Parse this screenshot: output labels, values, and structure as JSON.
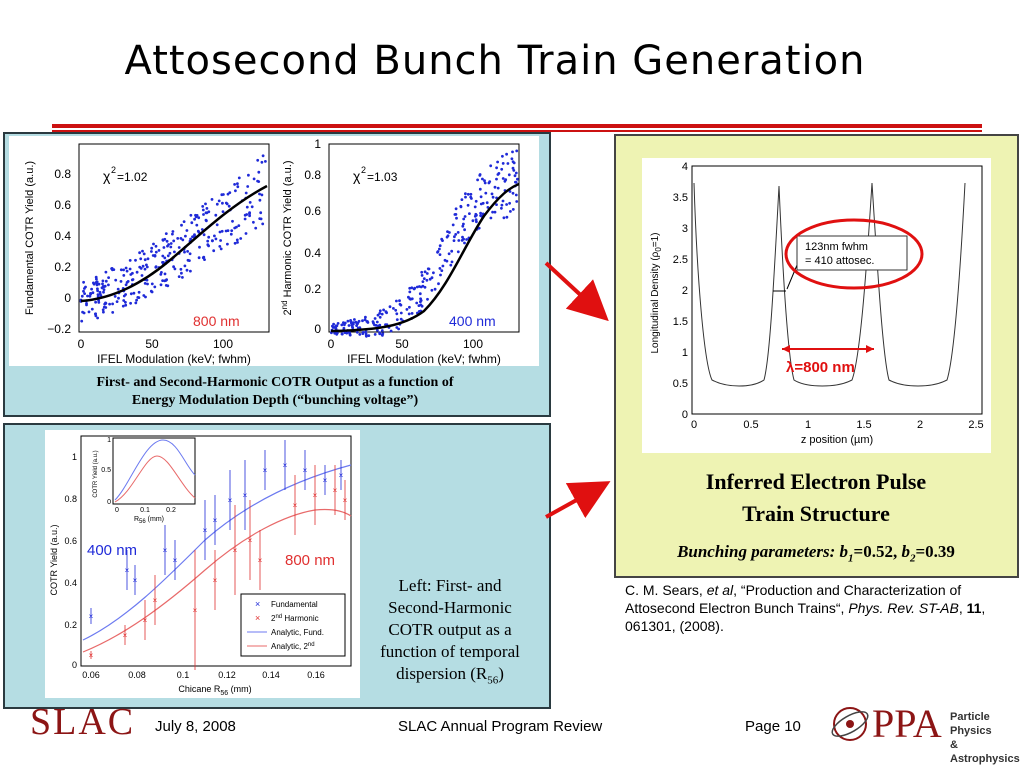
{
  "title": "Attosecond Bunch Train Generation",
  "panel1": {
    "caption_line1": "First- and Second-Harmonic COTR Output as a function of",
    "caption_line2": "Energy Modulation Depth (“bunching voltage”)",
    "plot_left": {
      "ylabel": "Fundamental COTR Yield (a.u.)",
      "xlabel": "IFEL Modulation (keV; fwhm)",
      "chi2": "=1.02",
      "wavelength_label": "800 nm",
      "yticks": [
        "0.8",
        "0.6",
        "0.4",
        "0.2",
        "0",
        "−0.2"
      ],
      "xticks": [
        "0",
        "50",
        "100"
      ]
    },
    "plot_right": {
      "ylabel_prefix": "2",
      "ylabel_sup": "nd",
      "ylabel": " Harmonic COTR Yield (a.u.)",
      "xlabel": "IFEL Modulation (keV; fwhm)",
      "chi2": "=1.03",
      "wavelength_label": "400 nm",
      "yticks": [
        "1",
        "0.8",
        "0.6",
        "0.4",
        "0.2",
        "0"
      ],
      "xticks": [
        "0",
        "50",
        "100"
      ]
    }
  },
  "panel2": {
    "caption_line1": "Left: First- and",
    "caption_line2": "Second-Harmonic",
    "caption_line3": "COTR output as a",
    "caption_line4": "function of temporal",
    "caption_line5": "dispersion (R",
    "caption_sub": "56",
    "caption_end": ")",
    "plot": {
      "ylabel": "COTR Yield (a.u.)",
      "xlabel": "Chicane R",
      "xlabel_sub": "56",
      "xlabel_end": " (mm)",
      "yticks": [
        "1",
        "0.8",
        "0.6",
        "0.4",
        "0.2",
        "0"
      ],
      "xticks": [
        "0.06",
        "0.08",
        "0.1",
        "0.12",
        "0.14",
        "0.16"
      ],
      "label_400": "400 nm",
      "label_800": "800 nm",
      "legend": [
        "Fundamental",
        "Harmonic",
        "Analytic, Fund.",
        "Analytic, 2"
      ],
      "legend_2nd": "2",
      "legend_nd": "nd",
      "inset_ylabel": "COTR Yield (a.u.)",
      "inset_xlabel": "R",
      "inset_xlabel_sub": "56",
      "inset_xlabel_end": " (mm)",
      "inset_yticks": [
        "1",
        "0.5",
        "0"
      ],
      "inset_xticks": [
        "0",
        "0.1",
        "0.2"
      ]
    }
  },
  "panel3": {
    "ylabel": "Longitudinal Density (ρ",
    "ylabel_sub": "0",
    "ylabel_end": "=1)",
    "xlabel": "z position (µm)",
    "yticks": [
      "4",
      "3.5",
      "3",
      "2.5",
      "2",
      "1.5",
      "1",
      "0.5",
      "0"
    ],
    "xticks": [
      "0",
      "0.5",
      "1",
      "1.5",
      "2",
      "2.5"
    ],
    "fwhm_line1": "123nm fwhm",
    "fwhm_line2": "= 410 attosec.",
    "lambda_label": "λ=800 nm",
    "caption_line1": "Inferred Electron Pulse",
    "caption_line2": "Train Structure",
    "bunching": "Bunching parameters: ",
    "b1": "b",
    "b1_sub": "1",
    "b1_val": "=0.52, ",
    "b2": "b",
    "b2_sub": "2",
    "b2_val": "=0.39"
  },
  "reference": {
    "part1": "C. M. Sears,  ",
    "etal": "et al",
    "part2": ", “Production and Characterization of  Attosecond Electron Bunch Trains“, ",
    "journal": "Phys. Rev. ST-AB",
    "part3": ", ",
    "volume": "11",
    "part4": ", 061301, (2008)."
  },
  "footer": {
    "logo": "SLAC",
    "date": "July 8, 2008",
    "event": "SLAC Annual Program Review",
    "page": "Page 10",
    "ppa_logo": "PPA",
    "ppa_line1": "Particle Physics",
    "ppa_line2": "& Astrophysics"
  },
  "colors": {
    "accent_red": "#cc1111",
    "panel_blue": "#b5dde3",
    "panel_yellow": "#eef3b3",
    "data_blue": "#1f2ad8",
    "data_red": "#e03030"
  }
}
